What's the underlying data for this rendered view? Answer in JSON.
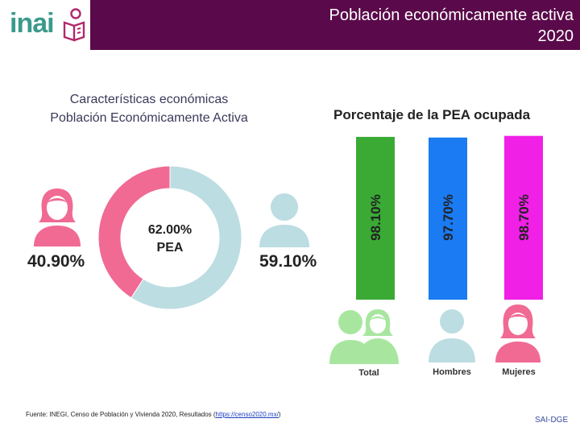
{
  "header": {
    "title_line1": "Población económicamente activa",
    "title_line2": "2020"
  },
  "logo": {
    "text": "inai"
  },
  "left_chart": {
    "title_line1": "Características económicas",
    "title_line2": "Población Económicamente Activa"
  },
  "chart_data": [
    {
      "type": "pie",
      "title": "Características económicas Población Económicamente Activa",
      "center_label_value": "62.00%",
      "center_label_text": "PEA",
      "categories": [
        "Mujeres",
        "Hombres"
      ],
      "values": [
        40.9,
        59.1
      ],
      "value_labels": [
        "40.90%",
        "59.10%"
      ],
      "colors": [
        "#f06a94",
        "#bcdde2"
      ]
    },
    {
      "type": "bar",
      "title": "Porcentaje de la PEA ocupada",
      "categories": [
        "Total",
        "Hombres",
        "Mujeres"
      ],
      "values": [
        98.1,
        97.7,
        98.7
      ],
      "value_labels": [
        "98.10%",
        "97.70%",
        "98.70%"
      ],
      "colors": [
        "#3aaa35",
        "#1a7bf2",
        "#f020e6"
      ]
    }
  ],
  "icons": {
    "female": "female-person-icon",
    "male": "male-person-icon",
    "group": "group-people-icon"
  },
  "footer": {
    "source_prefix": "Fuente: INEGI, Censo de Población y Vivienda 2020, Resultados (",
    "source_link": "https://censo2020.mx/",
    "source_suffix": ")",
    "tag": "SAI-DGE"
  }
}
